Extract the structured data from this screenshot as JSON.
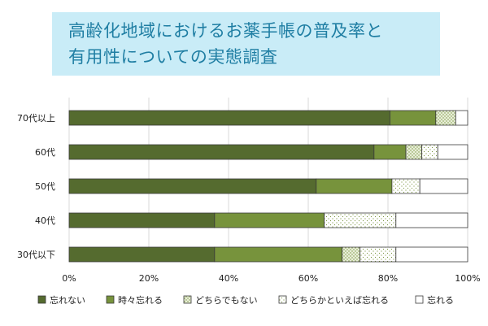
{
  "title": {
    "line1": "高齢化地域におけるお薬手帳の普及率と",
    "line2": "有用性についての実態調査"
  },
  "chart_data": {
    "type": "bar",
    "orientation": "horizontal",
    "stacked": true,
    "percent": true,
    "categories": [
      "70代以上",
      "60代",
      "50代",
      "40代",
      "30代以下"
    ],
    "series": [
      {
        "name": "忘れない",
        "color": "#556b2f",
        "pattern": "solid",
        "values": [
          80.5,
          76.5,
          62.0,
          36.5,
          36.5
        ]
      },
      {
        "name": "時々忘れる",
        "color": "#77933c",
        "pattern": "solid",
        "values": [
          11.5,
          8.0,
          19.0,
          27.5,
          32.0
        ]
      },
      {
        "name": "どちらでもない",
        "color": "#77933c",
        "pattern": "dots",
        "values": [
          5.0,
          4.0,
          0.0,
          0.0,
          4.5
        ]
      },
      {
        "name": "どちらかといえば忘れる",
        "color": "#77933c",
        "pattern": "sparse",
        "values": [
          0.0,
          4.0,
          7.0,
          18.0,
          9.0
        ]
      },
      {
        "name": "忘れる",
        "color": "#ffffff",
        "pattern": "solid",
        "values": [
          3.0,
          7.5,
          12.0,
          18.0,
          18.0
        ]
      }
    ],
    "xlim": [
      0,
      100
    ],
    "xticks": [
      "0%",
      "20%",
      "40%",
      "60%",
      "80%",
      "100%"
    ],
    "grid": true,
    "legend": "bottom"
  }
}
